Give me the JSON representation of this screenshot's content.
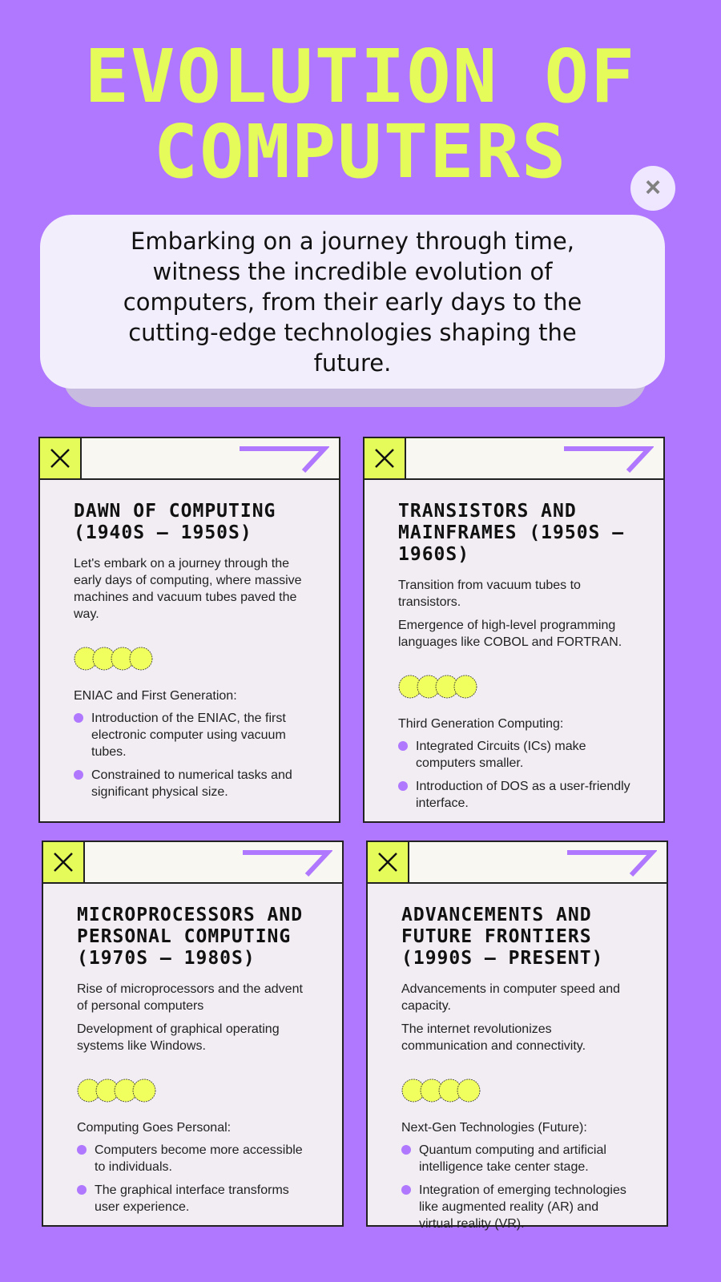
{
  "header": {
    "title_line1": "EVOLUTION OF",
    "title_line2": "COMPUTERS",
    "close_icon": "×"
  },
  "intro": "Embarking on a journey through time, witness the incredible evolution of computers, from their early days to the cutting-edge technologies shaping the future.",
  "colors": {
    "background": "#b077ff",
    "accent": "#e4fb5a",
    "card": "#f1edf3"
  },
  "cards": [
    {
      "title": "DAWN OF COMPUTING (1940S – 1950S)",
      "paragraphs": [
        "Let's embark on a journey through the early days of computing, where massive machines and vacuum tubes paved the way."
      ],
      "subheading": "ENIAC and First Generation:",
      "bullets": [
        "Introduction of the ENIAC, the first electronic computer using vacuum tubes.",
        "Constrained to numerical tasks and significant physical size."
      ]
    },
    {
      "title": "TRANSISTORS AND MAINFRAMES (1950S – 1960S)",
      "paragraphs": [
        "Transition from vacuum tubes to transistors.",
        "Emergence of high-level programming languages like COBOL and FORTRAN."
      ],
      "subheading": "Third Generation Computing:",
      "bullets": [
        "Integrated Circuits (ICs) make computers smaller.",
        "Introduction of DOS as a user-friendly interface."
      ]
    },
    {
      "title": "MICROPROCESSORS AND PERSONAL COMPUTING (1970S – 1980S)",
      "paragraphs": [
        "Rise of microprocessors and the advent of personal computers",
        "Development of graphical operating systems like Windows."
      ],
      "subheading": "Computing Goes Personal:",
      "bullets": [
        "Computers become more accessible to individuals.",
        "The graphical interface transforms user experience."
      ]
    },
    {
      "title": "ADVANCEMENTS AND FUTURE FRONTIERS (1990S – PRESENT)",
      "paragraphs": [
        "Advancements in computer speed and capacity.",
        "The internet revolutionizes communication and connectivity."
      ],
      "subheading": "Next-Gen Technologies (Future):",
      "bullets": [
        "Quantum computing and artificial intelligence take center stage.",
        "Integration of emerging technologies like augmented reality (AR) and virtual reality (VR)."
      ]
    }
  ]
}
